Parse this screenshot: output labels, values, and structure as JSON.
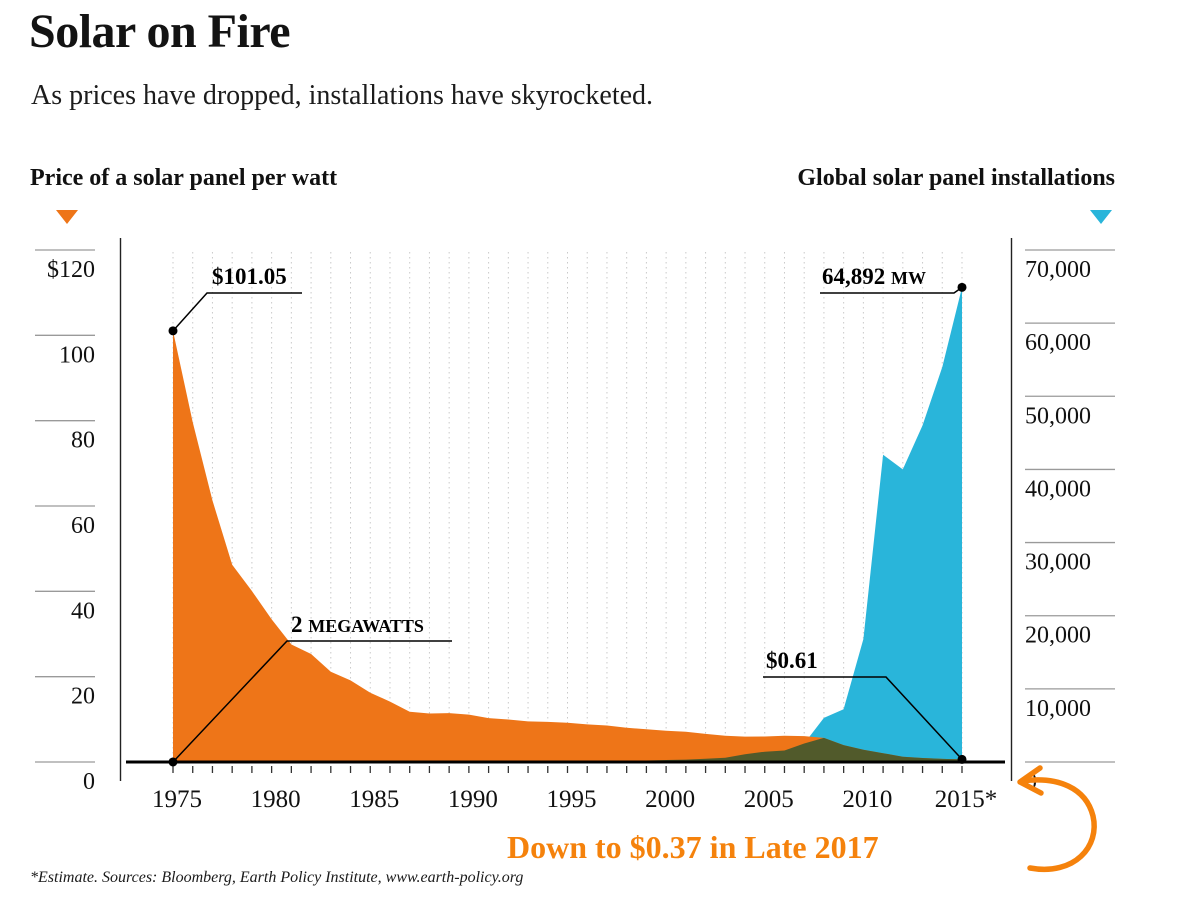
{
  "header": {
    "title": "Solar on Fire",
    "subtitle": "As prices have dropped, installations have skyrocketed."
  },
  "legend": {
    "left_label": "Price of a solar panel per watt",
    "right_label": "Global solar panel installations"
  },
  "callout": {
    "text": "Down to $0.37 in Late 2017"
  },
  "footer": {
    "source": "*Estimate. Sources: Bloomberg, Earth Policy Institute, www.earth-policy.org"
  },
  "colors": {
    "price": "#EE7518",
    "installations": "#29B5DA",
    "overlap": "#515A2B",
    "accent_text": "#F5820C",
    "grid": "#C9C9C9",
    "axis_rule": "#9A9A9A",
    "ink": "#111111"
  },
  "chart_data": {
    "type": "area",
    "title": "Solar on Fire",
    "subtitle": "As prices have dropped, installations have skyrocketed.",
    "x_years": [
      1975,
      1976,
      1977,
      1978,
      1979,
      1980,
      1981,
      1982,
      1983,
      1984,
      1985,
      1986,
      1987,
      1988,
      1989,
      1990,
      1991,
      1992,
      1993,
      1994,
      1995,
      1996,
      1997,
      1998,
      1999,
      2000,
      2001,
      2002,
      2003,
      2004,
      2005,
      2006,
      2007,
      2008,
      2009,
      2010,
      2011,
      2012,
      2013,
      2014,
      2015
    ],
    "series": [
      {
        "name": "Price of a solar panel per watt",
        "axis": "left",
        "unit": "$ per watt",
        "color": "#EE7518",
        "values": [
          101.05,
          79.67,
          61.34,
          46.21,
          40.07,
          33.48,
          27.54,
          25.32,
          21.14,
          19.13,
          16.24,
          14.15,
          11.79,
          11.37,
          11.47,
          11.12,
          10.29,
          9.95,
          9.52,
          9.4,
          9.18,
          8.82,
          8.55,
          8.01,
          7.67,
          7.34,
          7.08,
          6.59,
          6.14,
          5.95,
          5.97,
          6.13,
          6.06,
          5.66,
          3.97,
          2.86,
          2.07,
          1.25,
          0.93,
          0.72,
          0.61
        ]
      },
      {
        "name": "Global solar panel installations",
        "axis": "right",
        "unit": "MW",
        "color": "#29B5DA",
        "values": [
          2,
          3,
          8,
          10,
          14,
          7,
          8,
          9,
          17,
          22,
          21,
          15,
          29,
          34,
          40,
          46,
          55,
          58,
          60,
          69,
          78,
          89,
          126,
          153,
          201,
          277,
          334,
          439,
          594,
          1052,
          1407,
          1576,
          2526,
          6036,
          7208,
          16817,
          42000,
          40000,
          46000,
          54000,
          64892
        ]
      }
    ],
    "left_axis": {
      "max": 120,
      "range": [
        0,
        120
      ],
      "tick_values": [
        120,
        100,
        80,
        60,
        40,
        20,
        0
      ],
      "tick_labels": [
        "$120",
        "100",
        "80",
        "60",
        "40",
        "20",
        "0"
      ]
    },
    "right_axis": {
      "max": 70000,
      "range": [
        0,
        70000
      ],
      "tick_values": [
        70000,
        60000,
        50000,
        40000,
        30000,
        20000,
        10000,
        0
      ],
      "tick_labels": [
        "70,000",
        "60,000",
        "50,000",
        "40,000",
        "30,000",
        "20,000",
        "10,000",
        "0"
      ]
    },
    "x_axis": {
      "label_years": [
        1975,
        1980,
        1985,
        1990,
        1995,
        2000,
        2005,
        2010,
        2015
      ],
      "labels": [
        "1975",
        "1980",
        "1985",
        "1990",
        "1995",
        "2000",
        "2005",
        "2010",
        "2015*"
      ]
    },
    "annotations": [
      {
        "id": "price-start",
        "text": "$101.05",
        "year": 1975,
        "value": 101.05,
        "axis": "left"
      },
      {
        "id": "installs-peak",
        "text": "64,892 MW",
        "year": 2015,
        "value": 64892,
        "axis": "right"
      },
      {
        "id": "installs-start",
        "text": "2 MEGAWATTS",
        "year": 1975,
        "value": 2,
        "axis": "right"
      },
      {
        "id": "price-end",
        "text": "$0.61",
        "year": 2015,
        "value": 0.61,
        "axis": "left"
      }
    ],
    "grid": "vertical-dotted-per-year",
    "legend_position": "above-chart"
  }
}
